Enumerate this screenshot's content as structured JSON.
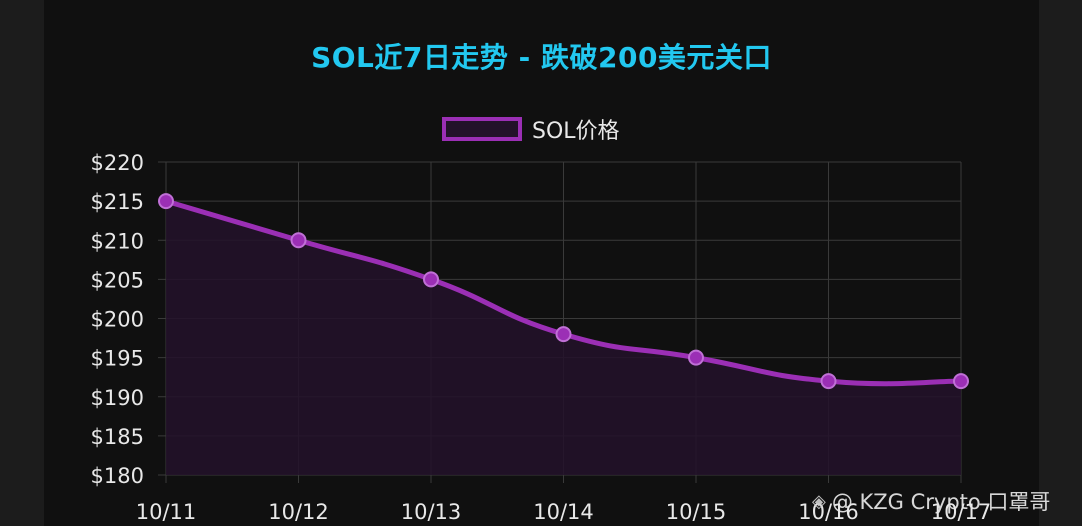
{
  "chart_data": {
    "type": "line",
    "title": "SOL近7日走势 - 跌破200美元关口",
    "categories": [
      "10/11",
      "10/12",
      "10/13",
      "10/14",
      "10/15",
      "10/16",
      "10/17"
    ],
    "series": [
      {
        "name": "SOL价格",
        "values": [
          215,
          210,
          205,
          198,
          195,
          192,
          192
        ]
      }
    ],
    "ylim": [
      180,
      220
    ],
    "y_ticks": [
      220,
      215,
      210,
      205,
      200,
      195,
      190,
      185,
      180
    ],
    "y_tick_prefix": "$",
    "grid": true,
    "legend_position": "top",
    "area_fill": true,
    "colors": {
      "title": "#22c8f0",
      "line": "#9b2fb5",
      "area": "#23122a",
      "grid": "#3a3a3a",
      "text": "#e8e8e8",
      "background": "#101010"
    }
  },
  "watermark": {
    "logo_icon": "binance-logo-icon",
    "logo_glyph": "◈",
    "text": "@ KZG Crypto 口罩哥"
  }
}
